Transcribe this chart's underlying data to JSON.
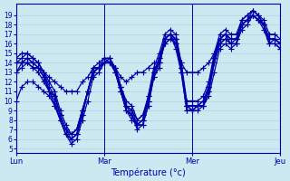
{
  "xlabel": "Température (°c)",
  "background_color": "#cce8f0",
  "grid_color": "#aaccdd",
  "line_color": "#0000aa",
  "marker": "+",
  "markersize": 4,
  "linewidth": 0.9,
  "ylim": [
    4.5,
    20.2
  ],
  "yticks": [
    5,
    6,
    7,
    8,
    9,
    10,
    11,
    12,
    13,
    14,
    15,
    16,
    17,
    18,
    19
  ],
  "xtick_labels": [
    "Lun",
    "Mar",
    "Mer",
    "Jeu"
  ],
  "xtick_positions": [
    0,
    24,
    48,
    72
  ],
  "xlim": [
    0,
    72
  ],
  "series": [
    [
      13.0,
      14.0,
      14.0,
      14.0,
      14.0,
      13.0,
      11.0,
      9.5,
      8.0,
      6.5,
      6.0,
      6.5,
      8.5,
      11.0,
      13.0,
      13.5,
      14.0,
      14.0,
      13.0,
      11.0,
      9.0,
      8.0,
      7.5,
      8.0,
      10.5,
      13.0,
      14.0,
      16.5,
      17.0,
      15.5,
      13.0,
      9.0,
      9.0,
      9.5,
      9.5,
      10.5,
      13.0,
      15.5,
      16.0,
      15.5,
      16.0,
      18.0,
      18.5,
      19.5,
      19.0,
      18.0,
      16.0,
      16.5,
      16.0
    ],
    [
      14.0,
      14.5,
      15.0,
      14.5,
      14.0,
      13.0,
      11.5,
      10.5,
      8.5,
      7.0,
      6.0,
      6.5,
      8.5,
      11.0,
      13.0,
      13.5,
      14.5,
      14.5,
      13.5,
      11.5,
      9.5,
      8.5,
      7.5,
      7.5,
      9.5,
      12.5,
      13.5,
      16.5,
      17.0,
      16.0,
      13.5,
      9.5,
      9.0,
      9.5,
      9.5,
      11.0,
      14.0,
      16.0,
      16.5,
      16.0,
      16.5,
      18.5,
      19.0,
      19.5,
      19.0,
      18.0,
      16.5,
      16.5,
      16.0
    ],
    [
      14.0,
      14.0,
      14.5,
      14.0,
      13.5,
      12.5,
      11.0,
      10.5,
      8.5,
      7.0,
      6.5,
      7.0,
      9.0,
      11.0,
      13.0,
      13.5,
      14.0,
      14.0,
      13.5,
      11.5,
      9.5,
      9.0,
      7.5,
      8.0,
      10.0,
      13.0,
      14.0,
      16.0,
      16.5,
      16.5,
      13.5,
      9.5,
      9.5,
      9.5,
      10.0,
      11.5,
      14.5,
      16.5,
      17.0,
      16.0,
      16.0,
      18.0,
      18.5,
      19.0,
      18.5,
      18.0,
      16.0,
      16.0,
      15.5
    ],
    [
      14.0,
      14.0,
      14.5,
      14.0,
      13.5,
      12.5,
      11.0,
      10.5,
      8.5,
      7.0,
      6.5,
      7.0,
      9.0,
      11.0,
      13.0,
      13.5,
      14.0,
      14.0,
      13.5,
      11.5,
      9.5,
      9.0,
      8.0,
      8.5,
      10.0,
      13.0,
      14.5,
      16.5,
      17.0,
      16.5,
      13.5,
      9.5,
      9.5,
      9.5,
      10.0,
      11.5,
      14.5,
      16.5,
      17.0,
      16.5,
      16.5,
      18.0,
      18.5,
      19.0,
      18.5,
      18.0,
      16.5,
      16.5,
      16.0
    ],
    [
      13.0,
      13.5,
      14.0,
      13.5,
      13.0,
      12.0,
      11.0,
      10.0,
      8.0,
      6.5,
      5.5,
      6.0,
      8.0,
      10.0,
      12.5,
      13.0,
      14.0,
      14.5,
      13.0,
      11.0,
      9.0,
      8.5,
      7.0,
      7.5,
      9.5,
      12.5,
      14.0,
      16.0,
      16.5,
      16.0,
      13.0,
      9.0,
      9.0,
      9.0,
      9.5,
      11.0,
      14.0,
      16.0,
      16.5,
      16.0,
      16.0,
      17.5,
      18.0,
      19.0,
      18.5,
      17.5,
      16.0,
      16.0,
      15.5
    ],
    [
      14.5,
      15.0,
      15.0,
      14.5,
      14.0,
      13.0,
      12.0,
      11.0,
      9.0,
      7.5,
      6.5,
      7.0,
      9.0,
      11.0,
      13.5,
      14.0,
      14.5,
      14.0,
      13.5,
      11.5,
      10.0,
      9.5,
      8.0,
      8.5,
      10.5,
      13.5,
      15.0,
      17.0,
      17.5,
      17.0,
      14.0,
      10.0,
      10.0,
      10.0,
      10.5,
      12.0,
      15.0,
      17.0,
      17.5,
      17.0,
      17.0,
      18.5,
      19.0,
      19.5,
      19.0,
      18.5,
      17.0,
      17.0,
      16.5
    ],
    [
      10.0,
      11.5,
      12.0,
      12.0,
      11.5,
      11.0,
      10.5,
      9.5,
      8.0,
      6.5,
      6.0,
      6.5,
      8.5,
      11.0,
      13.0,
      13.5,
      14.0,
      14.5,
      13.0,
      11.0,
      9.0,
      8.5,
      7.5,
      8.0,
      10.0,
      13.0,
      14.5,
      16.5,
      17.0,
      16.5,
      13.5,
      9.5,
      9.0,
      9.5,
      9.5,
      11.5,
      14.5,
      16.5,
      17.0,
      16.5,
      16.5,
      18.0,
      18.5,
      19.0,
      18.5,
      18.0,
      16.5,
      16.5,
      16.0
    ],
    [
      14.0,
      14.0,
      14.0,
      13.5,
      13.5,
      13.0,
      12.5,
      12.0,
      11.5,
      11.0,
      11.0,
      11.0,
      12.0,
      12.5,
      13.5,
      13.5,
      14.0,
      14.0,
      13.5,
      12.5,
      12.0,
      12.5,
      13.0,
      13.0,
      13.5,
      14.0,
      14.0,
      16.5,
      17.0,
      16.5,
      14.0,
      13.0,
      13.0,
      13.0,
      13.5,
      14.0,
      15.0,
      16.5,
      17.0,
      16.5,
      16.5,
      18.0,
      18.5,
      19.0,
      18.5,
      18.0,
      16.5,
      16.5,
      16.0
    ]
  ]
}
